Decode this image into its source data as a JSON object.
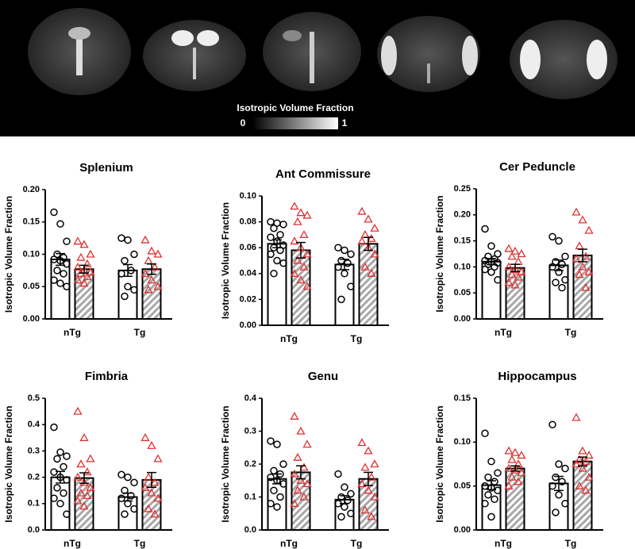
{
  "image_panel": {
    "colorbar_label": "Isotropic Volume Fraction",
    "colorbar_ticks": [
      0,
      1
    ]
  },
  "chart_data": [
    {
      "type": "bar",
      "title": "Splenium",
      "y_label": "Isotropic Volume Fraction",
      "categories": [
        "nTg",
        "Tg"
      ],
      "ylim": [
        0,
        0.2
      ],
      "yticks": [
        {
          "value": 0,
          "label": "0.00"
        },
        0.05,
        {
          "value": 0.1,
          "label": "0.10"
        },
        0.15,
        {
          "value": 0.2,
          "label": "0.20"
        }
      ],
      "series": [
        {
          "color": "#ffffff",
          "hatch": false,
          "marker": "circle",
          "point_color": "#000000",
          "values": [
            0.092,
            0.075
          ],
          "errors": [
            0.009,
            0.009
          ],
          "points": [
            [
              0.165,
              0.147,
              0.12,
              0.1,
              0.095,
              0.092,
              0.09,
              0.085,
              0.075,
              0.07,
              0.06,
              0.055,
              0.05
            ],
            [
              0.125,
              0.122,
              0.1,
              0.09,
              0.075,
              0.07,
              0.05,
              0.045,
              0.035
            ]
          ]
        },
        {
          "color": "#a8a8a8",
          "hatch": true,
          "marker": "triangle",
          "point_color": "#e03030",
          "values": [
            0.077,
            0.077
          ],
          "errors": [
            0.006,
            0.008
          ],
          "points": [
            [
              0.12,
              0.115,
              0.1,
              0.095,
              0.085,
              0.08,
              0.075,
              0.072,
              0.07,
              0.065,
              0.06,
              0.055
            ],
            [
              0.122,
              0.105,
              0.1,
              0.09,
              0.08,
              0.07,
              0.06,
              0.05,
              0.045
            ]
          ]
        }
      ]
    },
    {
      "type": "bar",
      "title": "Ant Commissure",
      "y_label": "Isotropic Volume Fraction",
      "categories": [
        "nTg",
        "Tg"
      ],
      "ylim": [
        0,
        0.1
      ],
      "yticks": [
        {
          "value": 0,
          "label": "0.00"
        },
        0.02,
        0.04,
        0.06,
        0.08,
        {
          "value": 0.1,
          "label": "0.10"
        }
      ],
      "series": [
        {
          "color": "#ffffff",
          "hatch": false,
          "marker": "circle",
          "point_color": "#000000",
          "values": [
            0.063,
            0.047
          ],
          "errors": [
            0.003,
            0.004
          ],
          "points": [
            [
              0.08,
              0.079,
              0.078,
              0.075,
              0.07,
              0.068,
              0.065,
              0.062,
              0.06,
              0.058,
              0.055,
              0.05,
              0.048,
              0.04
            ],
            [
              0.06,
              0.058,
              0.055,
              0.05,
              0.048,
              0.045,
              0.04,
              0.03,
              0.02
            ]
          ]
        },
        {
          "color": "#a8a8a8",
          "hatch": true,
          "marker": "triangle",
          "point_color": "#e03030",
          "values": [
            0.058,
            0.063
          ],
          "errors": [
            0.006,
            0.005
          ],
          "points": [
            [
              0.092,
              0.087,
              0.085,
              0.08,
              0.07,
              0.065,
              0.06,
              0.055,
              0.05,
              0.045,
              0.04,
              0.035,
              0.03
            ],
            [
              0.088,
              0.082,
              0.075,
              0.07,
              0.067,
              0.065,
              0.06,
              0.055,
              0.045,
              0.04
            ]
          ]
        }
      ]
    },
    {
      "type": "bar",
      "title": "Cer Peduncle",
      "y_label": "Isotropic Volume Fraction",
      "categories": [
        "nTg",
        "Tg"
      ],
      "ylim": [
        0,
        0.25
      ],
      "yticks": [
        {
          "value": 0,
          "label": "0.00"
        },
        0.05,
        {
          "value": 0.1,
          "label": "0.10"
        },
        0.15,
        {
          "value": 0.2,
          "label": "0.20"
        },
        0.25
      ],
      "series": [
        {
          "color": "#ffffff",
          "hatch": false,
          "marker": "circle",
          "point_color": "#000000",
          "values": [
            0.11,
            0.103
          ],
          "errors": [
            0.006,
            0.01
          ],
          "points": [
            [
              0.173,
              0.14,
              0.125,
              0.12,
              0.115,
              0.112,
              0.11,
              0.108,
              0.105,
              0.1,
              0.095,
              0.09,
              0.075
            ],
            [
              0.158,
              0.15,
              0.12,
              0.11,
              0.105,
              0.1,
              0.09,
              0.075,
              0.07,
              0.06
            ]
          ]
        },
        {
          "color": "#a8a8a8",
          "hatch": true,
          "marker": "triangle",
          "point_color": "#e03030",
          "values": [
            0.098,
            0.122
          ],
          "errors": [
            0.007,
            0.012
          ],
          "points": [
            [
              0.135,
              0.13,
              0.125,
              0.12,
              0.11,
              0.1,
              0.095,
              0.09,
              0.085,
              0.08,
              0.07,
              0.065
            ],
            [
              0.205,
              0.19,
              0.17,
              0.14,
              0.12,
              0.115,
              0.1,
              0.09,
              0.085,
              0.06
            ]
          ]
        }
      ]
    },
    {
      "type": "bar",
      "title": "Fimbria",
      "y_label": "Isotropic Volume Fraction",
      "categories": [
        "nTg",
        "Tg"
      ],
      "ylim": [
        0,
        0.5
      ],
      "yticks": [
        {
          "value": 0,
          "label": "0.0"
        },
        0.1,
        0.2,
        0.3,
        0.4,
        0.5
      ],
      "series": [
        {
          "color": "#ffffff",
          "hatch": false,
          "marker": "circle",
          "point_color": "#000000",
          "values": [
            0.2,
            0.125
          ],
          "errors": [
            0.022,
            0.015
          ],
          "points": [
            [
              0.39,
              0.295,
              0.28,
              0.27,
              0.24,
              0.22,
              0.2,
              0.19,
              0.16,
              0.14,
              0.12,
              0.1,
              0.06
            ],
            [
              0.21,
              0.2,
              0.18,
              0.15,
              0.13,
              0.12,
              0.1,
              0.08,
              0.06
            ]
          ]
        },
        {
          "color": "#a8a8a8",
          "hatch": true,
          "marker": "triangle",
          "point_color": "#e03030",
          "values": [
            0.197,
            0.19
          ],
          "errors": [
            0.02,
            0.028
          ],
          "points": [
            [
              0.45,
              0.35,
              0.27,
              0.25,
              0.22,
              0.2,
              0.18,
              0.16,
              0.14,
              0.13,
              0.11,
              0.09
            ],
            [
              0.35,
              0.32,
              0.27,
              0.2,
              0.18,
              0.16,
              0.14,
              0.12,
              0.08,
              0.06
            ]
          ]
        }
      ]
    },
    {
      "type": "bar",
      "title": "Genu",
      "y_label": "Isotropic Volume Fraction",
      "categories": [
        "nTg",
        "Tg"
      ],
      "ylim": [
        0,
        0.4
      ],
      "yticks": [
        {
          "value": 0,
          "label": "0.0"
        },
        0.1,
        0.2,
        0.3,
        0.4
      ],
      "series": [
        {
          "color": "#ffffff",
          "hatch": false,
          "marker": "circle",
          "point_color": "#000000",
          "values": [
            0.155,
            0.092
          ],
          "errors": [
            0.015,
            0.012
          ],
          "points": [
            [
              0.27,
              0.26,
              0.2,
              0.18,
              0.17,
              0.16,
              0.15,
              0.14,
              0.12,
              0.1,
              0.08,
              0.07
            ],
            [
              0.17,
              0.13,
              0.11,
              0.1,
              0.09,
              0.08,
              0.07,
              0.05,
              0.04
            ]
          ]
        },
        {
          "color": "#a8a8a8",
          "hatch": true,
          "marker": "triangle",
          "point_color": "#e03030",
          "values": [
            0.175,
            0.155
          ],
          "errors": [
            0.02,
            0.02
          ],
          "points": [
            [
              0.345,
              0.3,
              0.26,
              0.22,
              0.19,
              0.17,
              0.15,
              0.14,
              0.12,
              0.1,
              0.08
            ],
            [
              0.265,
              0.24,
              0.2,
              0.19,
              0.16,
              0.14,
              0.12,
              0.1,
              0.06,
              0.04
            ]
          ]
        }
      ]
    },
    {
      "type": "bar",
      "title": "Hippocampus",
      "y_label": "Isotropic Volume Fraction",
      "categories": [
        "nTg",
        "Tg"
      ],
      "ylim": [
        0,
        0.15
      ],
      "yticks": [
        {
          "value": 0,
          "label": "0.00"
        },
        0.05,
        {
          "value": 0.1,
          "label": "0.10"
        },
        0.15
      ],
      "series": [
        {
          "color": "#ffffff",
          "hatch": false,
          "marker": "circle",
          "point_color": "#000000",
          "values": [
            0.051,
            0.053
          ],
          "errors": [
            0.005,
            0.008
          ],
          "points": [
            [
              0.11,
              0.078,
              0.065,
              0.06,
              0.055,
              0.05,
              0.048,
              0.045,
              0.04,
              0.035,
              0.03,
              0.015
            ],
            [
              0.12,
              0.075,
              0.07,
              0.06,
              0.055,
              0.05,
              0.04,
              0.03,
              0.02
            ]
          ]
        },
        {
          "color": "#a8a8a8",
          "hatch": true,
          "marker": "triangle",
          "point_color": "#e03030",
          "values": [
            0.07,
            0.078
          ],
          "errors": [
            0.003,
            0.005
          ],
          "points": [
            [
              0.09,
              0.088,
              0.085,
              0.08,
              0.075,
              0.07,
              0.068,
              0.065,
              0.06,
              0.055,
              0.05
            ],
            [
              0.128,
              0.09,
              0.085,
              0.08,
              0.078,
              0.075,
              0.07,
              0.06,
              0.05,
              0.045
            ]
          ]
        }
      ]
    }
  ]
}
